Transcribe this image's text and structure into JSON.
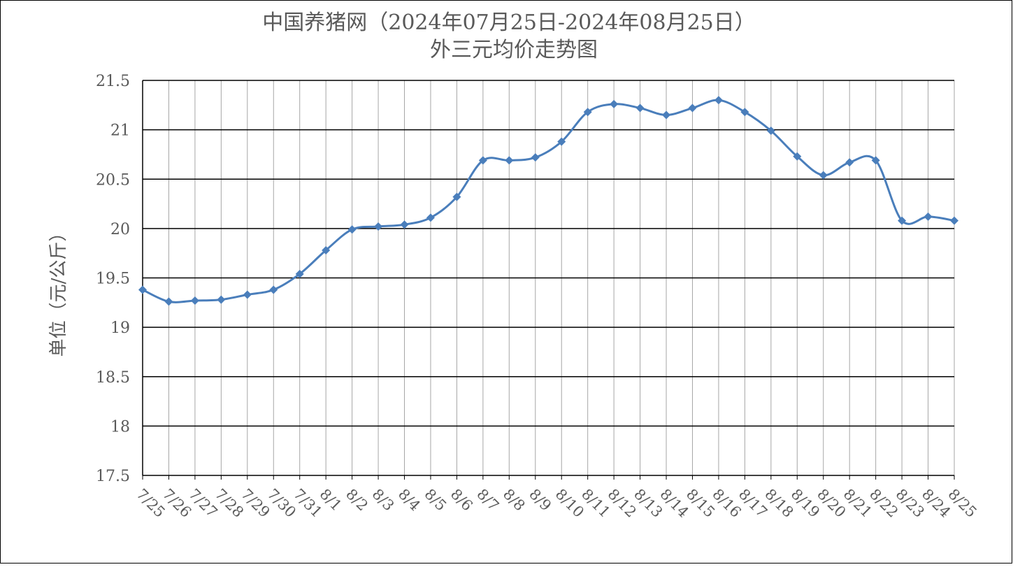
{
  "chart_data": {
    "type": "line",
    "title": "中国养猪网（2024年07月25日-2024年08月25日）",
    "subtitle": "外三元均价走势图",
    "y_label": "单位（元/公斤）",
    "categories": [
      "7/25",
      "7/26",
      "7/27",
      "7/28",
      "7/29",
      "7/30",
      "7/31",
      "8/1",
      "8/2",
      "8/3",
      "8/4",
      "8/5",
      "8/6",
      "8/7",
      "8/8",
      "8/9",
      "8/10",
      "8/11",
      "8/12",
      "8/13",
      "8/14",
      "8/15",
      "8/16",
      "8/17",
      "8/18",
      "8/19",
      "8/20",
      "8/21",
      "8/22",
      "8/23",
      "8/24",
      "8/25"
    ],
    "values": [
      19.38,
      19.26,
      19.27,
      19.28,
      19.33,
      19.38,
      19.54,
      19.78,
      19.99,
      20.02,
      20.04,
      20.11,
      20.32,
      20.69,
      20.69,
      20.72,
      20.88,
      21.18,
      21.26,
      21.22,
      21.15,
      21.22,
      21.3,
      21.18,
      20.99,
      20.73,
      20.54,
      20.67,
      20.69,
      20.08,
      20.12,
      20.08
    ],
    "color": "#4a7ebb",
    "ylim": [
      17.5,
      21.5
    ],
    "yticks": [
      17.5,
      18,
      18.5,
      19,
      19.5,
      20,
      20.5,
      21,
      21.5
    ],
    "grid": true
  }
}
